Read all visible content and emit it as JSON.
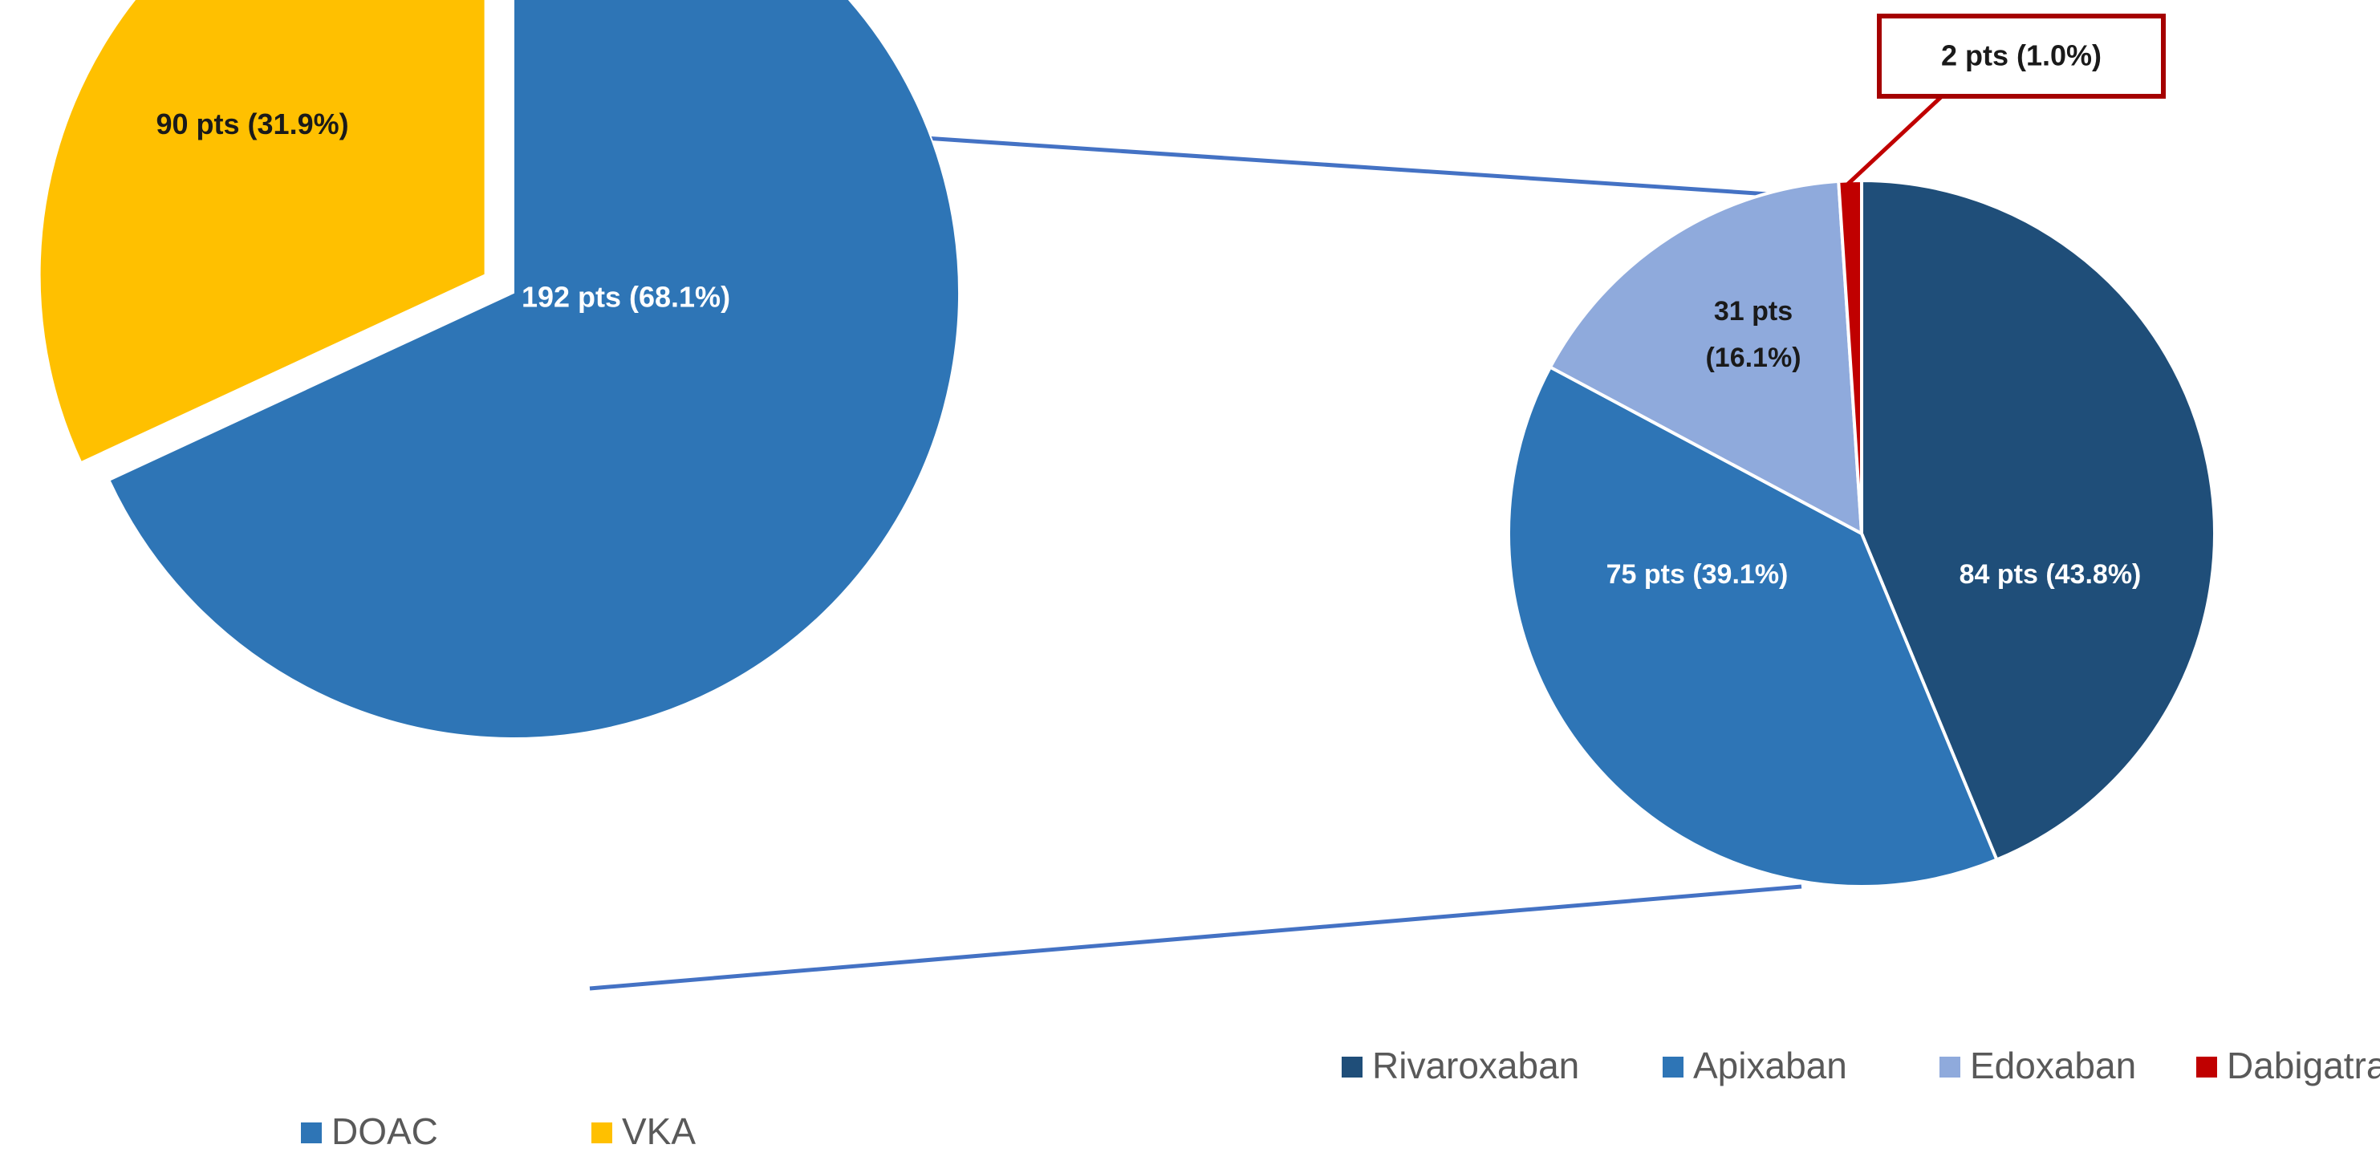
{
  "chart_data": [
    {
      "type": "pie",
      "categories": [
        "DOAC",
        "VKA"
      ],
      "values": [
        192,
        90
      ],
      "labels": [
        "192 pts (68.1%)",
        "90 pts (31.9%)"
      ],
      "colors": [
        "#2e75b6",
        "#ffc000"
      ],
      "exploded": "VKA",
      "legend": {
        "placement": "bottom-left",
        "entries": [
          "DOAC",
          "VKA"
        ]
      }
    },
    {
      "type": "pie",
      "categories": [
        "Rivaroxaban",
        "Apixaban",
        "Edoxaban",
        "Dabigatran"
      ],
      "values": [
        84,
        75,
        31,
        2
      ],
      "labels": [
        "84 pts (43.8%)",
        "75 pts (39.1%)",
        "31 pts (16.1%)",
        "2 pts (1.0%)"
      ],
      "colors": [
        "#1f4e79",
        "#2e75b6",
        "#8faadc",
        "#c00000"
      ],
      "callout": "Dabigatran",
      "legend": {
        "placement": "bottom-right",
        "entries": [
          "Rivaroxaban",
          "Apixaban",
          "Edoxaban",
          "Dabigatran"
        ]
      }
    }
  ]
}
